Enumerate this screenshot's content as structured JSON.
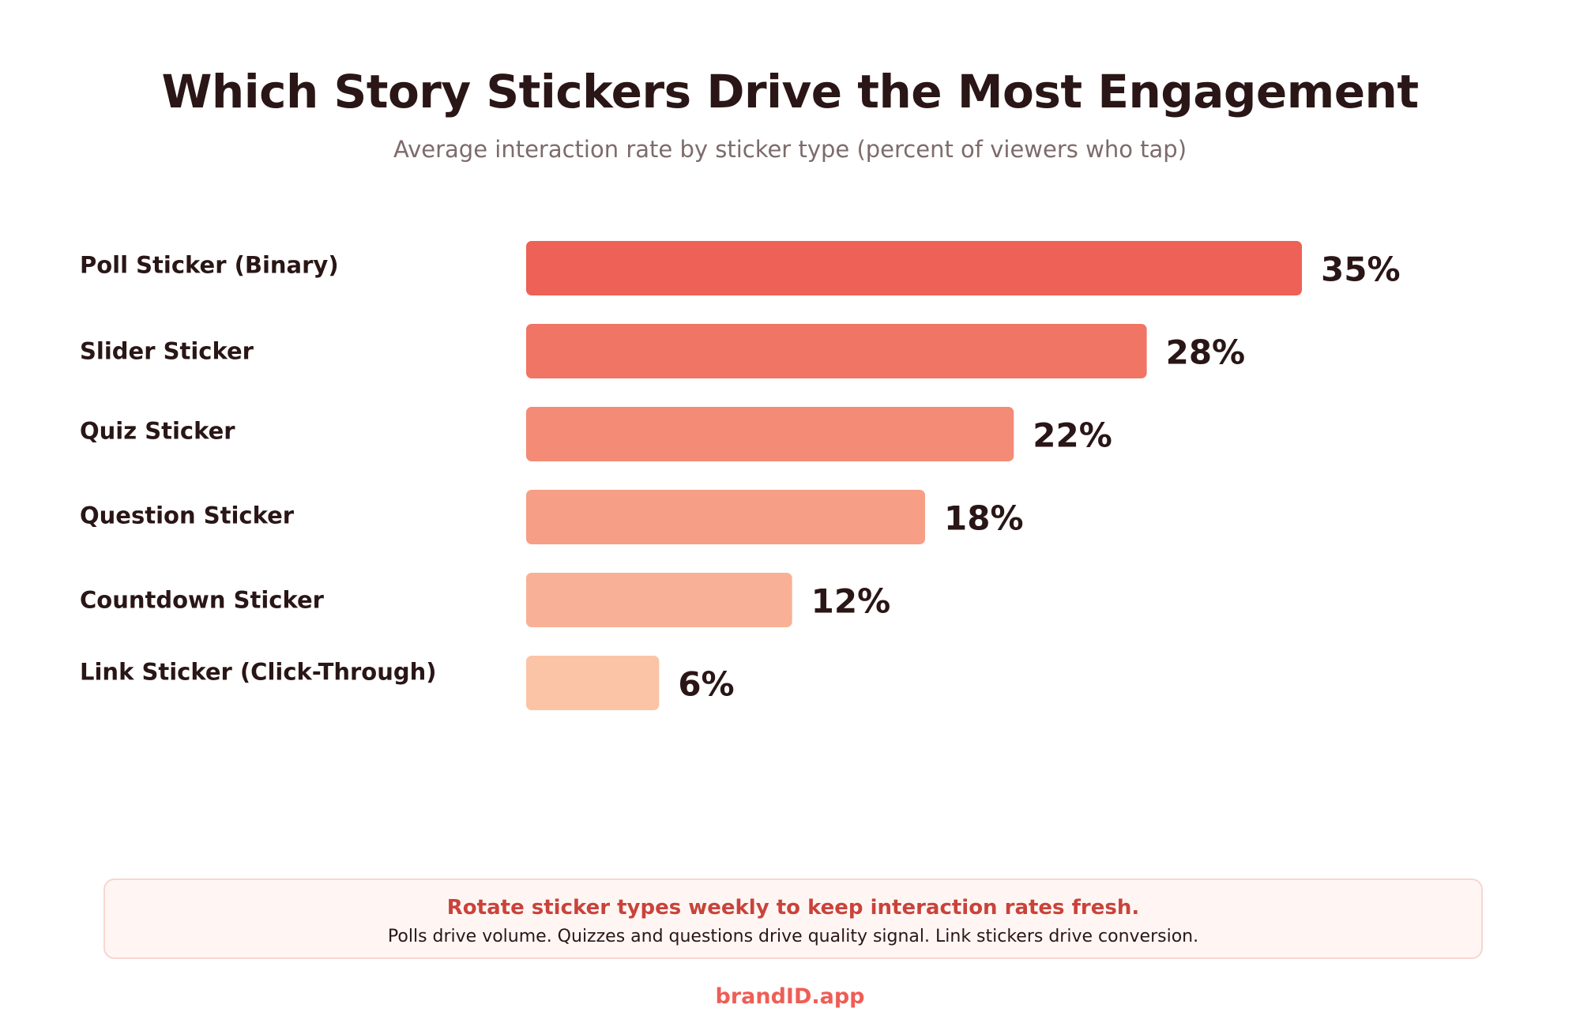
{
  "chart_data": {
    "type": "bar",
    "orientation": "horizontal",
    "title": "Which Story Stickers Drive the Most Engagement",
    "subtitle": "Average interaction rate by sticker type (percent of viewers who tap)",
    "xlabel": "",
    "ylabel": "",
    "xlim": [
      0,
      35
    ],
    "grid": false,
    "categories": [
      "Poll Sticker (Binary)",
      "Slider Sticker",
      "Quiz Sticker",
      "Question Sticker",
      "Countdown Sticker",
      "Link Sticker (Click-Through)"
    ],
    "values": [
      35,
      28,
      22,
      18,
      12,
      6
    ],
    "value_labels": [
      "35%",
      "28%",
      "22%",
      "18%",
      "12%",
      "6%"
    ],
    "bar_colors": [
      "#ee6157",
      "#f07565",
      "#f38b76",
      "#f69e86",
      "#f8b196",
      "#fbc4a6"
    ]
  },
  "callout": {
    "headline": "Rotate sticker types weekly to keep interaction rates fresh.",
    "body": "Polls drive volume. Quizzes and questions drive quality signal. Link stickers drive conversion."
  },
  "brand": "brandID.app",
  "colors": {
    "text": "#2a1616",
    "subtitle": "#7d6b6b",
    "accent": "#ee5e55",
    "callout_headline": "#c9433a",
    "callout_bg": "#fff6f4",
    "callout_border": "#f7d6d0"
  }
}
